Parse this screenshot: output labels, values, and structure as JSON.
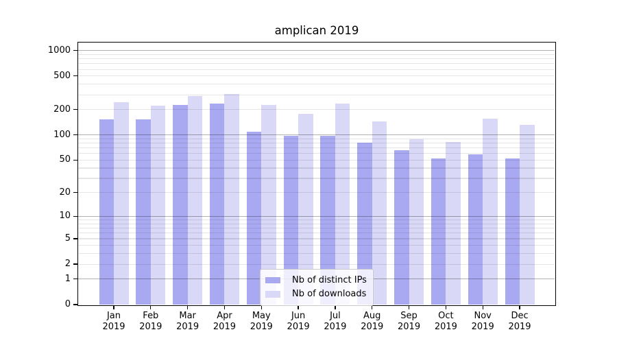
{
  "chart_data": {
    "type": "bar",
    "title": "amplican 2019",
    "categories": [
      "Jan",
      "Feb",
      "Mar",
      "Apr",
      "May",
      "Jun",
      "Jul",
      "Aug",
      "Sep",
      "Oct",
      "Nov",
      "Dec"
    ],
    "year_label": "2019",
    "series": [
      {
        "name": "Nb of distinct IPs",
        "color": "#a9a9f2",
        "values": [
          153,
          153,
          226,
          235,
          110,
          98,
          98,
          80,
          65,
          52,
          59,
          52
        ]
      },
      {
        "name": "Nb of downloads",
        "color": "#d9d9f7",
        "values": [
          246,
          221,
          291,
          308,
          229,
          177,
          234,
          145,
          88,
          83,
          156,
          131
        ]
      }
    ],
    "yticks": [
      0,
      1,
      2,
      5,
      10,
      20,
      50,
      100,
      200,
      500,
      1000
    ],
    "yscale": "log1p",
    "ylim": [
      0,
      1250
    ],
    "xlabel": "",
    "ylabel": "",
    "grid": true,
    "legend_position": "lower-center-inside"
  }
}
